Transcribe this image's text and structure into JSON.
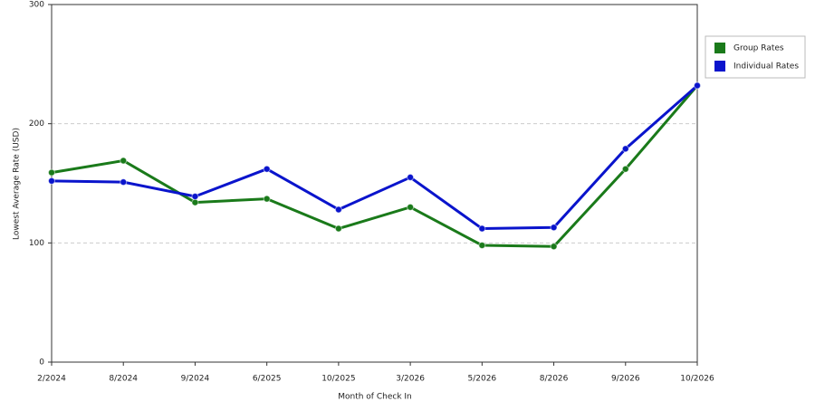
{
  "chart_data": {
    "type": "line",
    "x_label": "Month of Check In",
    "y_label": "Lowest Average Rate (USD)",
    "categories": [
      "2/2024",
      "8/2024",
      "9/2024",
      "6/2025",
      "10/2025",
      "3/2026",
      "5/2026",
      "8/2026",
      "9/2026",
      "10/2026"
    ],
    "series": [
      {
        "name": "Group Rates",
        "color": "#1a7a1a",
        "values": [
          159,
          169,
          134,
          137,
          112,
          130,
          98,
          97,
          162,
          232
        ]
      },
      {
        "name": "Individual Rates",
        "color": "#0a14cc",
        "values": [
          152,
          151,
          139,
          162,
          128,
          155,
          112,
          113,
          179,
          232
        ]
      }
    ],
    "ylim": [
      0,
      300
    ],
    "yticks": [
      0,
      100,
      200,
      300
    ],
    "grid": true,
    "legend": "right"
  }
}
